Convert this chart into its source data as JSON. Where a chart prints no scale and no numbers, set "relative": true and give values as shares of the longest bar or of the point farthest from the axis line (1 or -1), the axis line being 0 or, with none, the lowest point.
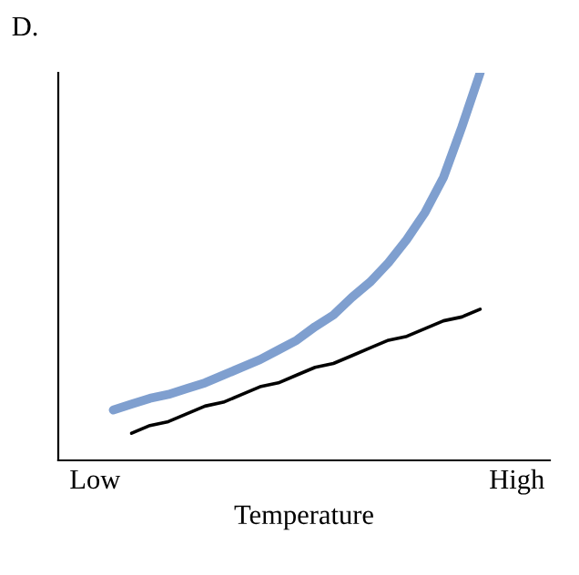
{
  "chart_data": {
    "type": "line",
    "title": "D.",
    "xlabel": "Temperature",
    "relative": true,
    "tick_labels": "x",
    "categories": [
      "Low",
      null,
      null,
      null,
      null,
      null,
      null,
      null,
      null,
      null,
      null,
      null,
      null,
      null,
      null,
      null,
      null,
      null,
      null,
      null,
      null,
      null,
      null,
      "High"
    ],
    "series": [
      {
        "color": "#7f9fcf",
        "values": [
          null,
          0.13,
          0.145,
          0.16,
          0.17,
          0.185,
          0.2,
          0.22,
          0.24,
          0.26,
          0.285,
          0.31,
          0.345,
          0.375,
          0.42,
          0.46,
          0.51,
          0.57,
          0.64,
          0.73,
          0.86,
          1,
          null,
          null
        ]
      },
      {
        "color": "#000000",
        "values": [
          null,
          null,
          0.07,
          0.09,
          0.1,
          0.12,
          0.14,
          0.15,
          0.17,
          0.19,
          0.2,
          0.22,
          0.24,
          0.25,
          0.27,
          0.29,
          0.31,
          0.32,
          0.34,
          0.36,
          0.37,
          0.39,
          null,
          null
        ]
      }
    ]
  }
}
